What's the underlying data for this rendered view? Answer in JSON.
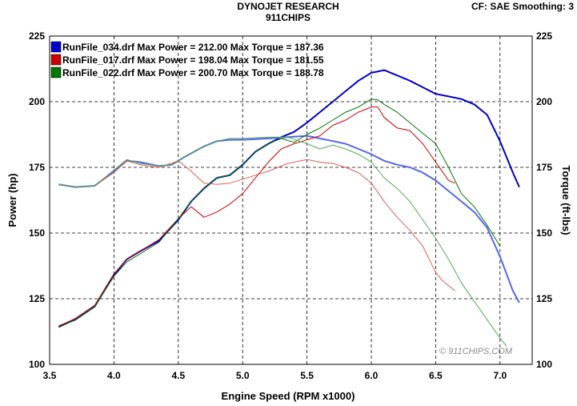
{
  "header": {
    "title": "DYNOJET RESEARCH",
    "subtitle": "911CHIPS",
    "settings": "CF: SAE  Smoothing: 3"
  },
  "watermark": "© 911CHIPS.COM",
  "chart_data": {
    "type": "line",
    "xlabel": "Engine Speed (RPM x1000)",
    "ylabel": "Power (hp)",
    "ylabel_right": "Torque (ft-lbs)",
    "xlim": [
      3.5,
      7.25
    ],
    "ylim": [
      100,
      225
    ],
    "ylim_right": [
      100,
      225
    ],
    "x_ticks": [
      "3.5",
      "4.0",
      "4.5",
      "5.0",
      "5.5",
      "6.0",
      "6.5",
      "7.0"
    ],
    "y_ticks": [
      "100",
      "125",
      "150",
      "175",
      "200",
      "225"
    ],
    "grid": true,
    "legend_position": "top-left",
    "legend": [
      {
        "file": "RunFile_034.drf",
        "text": "RunFile_034.drf Max Power = 212.00 Max Torque = 187.36",
        "color": "#0000cc"
      },
      {
        "file": "RunFile_017.drf",
        "text": "RunFile_017.drf Max Power = 198.04 Max Torque = 181.55",
        "color": "#cc0000"
      },
      {
        "file": "RunFile_022.drf",
        "text": "RunFile_022.drf Max Power = 200.70 Max Torque = 188.78",
        "color": "#007700"
      }
    ],
    "series": [
      {
        "name": "RunFile_034.drf",
        "measure": "Power",
        "color": "#0000cc",
        "width": 2,
        "points": [
          [
            3.57,
            114.5
          ],
          [
            3.7,
            117
          ],
          [
            3.85,
            122
          ],
          [
            4.0,
            134
          ],
          [
            4.1,
            140
          ],
          [
            4.2,
            143
          ],
          [
            4.35,
            147
          ],
          [
            4.5,
            155
          ],
          [
            4.6,
            162
          ],
          [
            4.7,
            167
          ],
          [
            4.8,
            171
          ],
          [
            4.9,
            172
          ],
          [
            5.0,
            176
          ],
          [
            5.1,
            181
          ],
          [
            5.2,
            184
          ],
          [
            5.3,
            186.5
          ],
          [
            5.4,
            188.5
          ],
          [
            5.5,
            192
          ],
          [
            5.6,
            196
          ],
          [
            5.7,
            200
          ],
          [
            5.8,
            204
          ],
          [
            5.9,
            208
          ],
          [
            6.0,
            211
          ],
          [
            6.1,
            212
          ],
          [
            6.2,
            210
          ],
          [
            6.3,
            208
          ],
          [
            6.4,
            205.5
          ],
          [
            6.5,
            203
          ],
          [
            6.6,
            202
          ],
          [
            6.7,
            201
          ],
          [
            6.8,
            199
          ],
          [
            6.9,
            195
          ],
          [
            7.0,
            185
          ],
          [
            7.1,
            173
          ],
          [
            7.15,
            167.5
          ]
        ]
      },
      {
        "name": "RunFile_034.drf",
        "measure": "Torque",
        "color": "#5566ee",
        "width": 2,
        "points": [
          [
            3.57,
            168.5
          ],
          [
            3.7,
            167.5
          ],
          [
            3.85,
            168
          ],
          [
            4.0,
            173.5
          ],
          [
            4.1,
            177.5
          ],
          [
            4.2,
            177
          ],
          [
            4.35,
            175.5
          ],
          [
            4.45,
            176
          ],
          [
            4.55,
            179
          ],
          [
            4.7,
            183
          ],
          [
            4.8,
            185
          ],
          [
            4.9,
            185.5
          ],
          [
            5.0,
            185.5
          ],
          [
            5.2,
            186
          ],
          [
            5.35,
            186.5
          ],
          [
            5.5,
            187
          ],
          [
            5.6,
            186
          ],
          [
            5.7,
            185
          ],
          [
            5.8,
            184
          ],
          [
            5.9,
            182
          ],
          [
            6.0,
            180
          ],
          [
            6.1,
            177.5
          ],
          [
            6.2,
            176
          ],
          [
            6.3,
            175
          ],
          [
            6.4,
            173
          ],
          [
            6.5,
            170
          ],
          [
            6.6,
            166
          ],
          [
            6.7,
            162
          ],
          [
            6.8,
            158
          ],
          [
            6.9,
            152
          ],
          [
            7.0,
            141
          ],
          [
            7.1,
            128
          ],
          [
            7.15,
            123.5
          ]
        ]
      },
      {
        "name": "RunFile_017.drf",
        "measure": "Power",
        "color": "#cc0000",
        "width": 1,
        "points": [
          [
            3.57,
            114.5
          ],
          [
            3.7,
            117.5
          ],
          [
            3.85,
            122.5
          ],
          [
            4.0,
            134.5
          ],
          [
            4.1,
            140
          ],
          [
            4.2,
            143
          ],
          [
            4.35,
            147.5
          ],
          [
            4.5,
            155.5
          ],
          [
            4.6,
            160
          ],
          [
            4.7,
            156
          ],
          [
            4.8,
            158
          ],
          [
            4.9,
            161
          ],
          [
            5.0,
            165
          ],
          [
            5.1,
            171
          ],
          [
            5.2,
            177
          ],
          [
            5.3,
            182
          ],
          [
            5.4,
            184
          ],
          [
            5.5,
            185.5
          ],
          [
            5.6,
            187
          ],
          [
            5.7,
            191
          ],
          [
            5.8,
            193
          ],
          [
            5.9,
            196
          ],
          [
            6.0,
            198
          ],
          [
            6.05,
            198
          ],
          [
            6.1,
            194
          ],
          [
            6.2,
            190
          ],
          [
            6.3,
            189
          ],
          [
            6.4,
            184
          ],
          [
            6.5,
            177
          ],
          [
            6.6,
            170
          ],
          [
            6.65,
            169
          ]
        ]
      },
      {
        "name": "RunFile_017.drf",
        "measure": "Torque",
        "color": "#e06050",
        "width": 1,
        "points": [
          [
            3.57,
            168.5
          ],
          [
            3.7,
            167.5
          ],
          [
            3.85,
            168
          ],
          [
            4.0,
            173
          ],
          [
            4.1,
            177.5
          ],
          [
            4.2,
            176
          ],
          [
            4.35,
            175
          ],
          [
            4.5,
            177.5
          ],
          [
            4.6,
            173.5
          ],
          [
            4.7,
            169
          ],
          [
            4.8,
            168.5
          ],
          [
            4.9,
            169
          ],
          [
            5.0,
            170.5
          ],
          [
            5.2,
            173.5
          ],
          [
            5.35,
            176.5
          ],
          [
            5.5,
            178
          ],
          [
            5.6,
            177
          ],
          [
            5.7,
            176.5
          ],
          [
            5.8,
            175
          ],
          [
            5.9,
            173
          ],
          [
            6.0,
            169
          ],
          [
            6.1,
            162
          ],
          [
            6.2,
            156
          ],
          [
            6.3,
            151
          ],
          [
            6.4,
            145
          ],
          [
            6.5,
            135
          ],
          [
            6.55,
            132
          ],
          [
            6.6,
            130
          ],
          [
            6.65,
            128
          ]
        ]
      },
      {
        "name": "RunFile_022.drf",
        "measure": "Power",
        "color": "#007700",
        "width": 1,
        "points": [
          [
            3.57,
            114
          ],
          [
            3.7,
            117
          ],
          [
            3.85,
            122
          ],
          [
            4.0,
            133.5
          ],
          [
            4.1,
            139
          ],
          [
            4.2,
            142
          ],
          [
            4.35,
            146.5
          ],
          [
            4.5,
            155.5
          ],
          [
            4.6,
            162
          ],
          [
            4.7,
            167
          ],
          [
            4.8,
            171
          ],
          [
            4.9,
            172
          ],
          [
            5.0,
            176
          ],
          [
            5.1,
            181
          ],
          [
            5.2,
            184
          ],
          [
            5.3,
            186
          ],
          [
            5.4,
            184.5
          ],
          [
            5.5,
            187.5
          ],
          [
            5.6,
            190
          ],
          [
            5.7,
            193
          ],
          [
            5.8,
            196
          ],
          [
            5.9,
            198
          ],
          [
            6.0,
            201
          ],
          [
            6.05,
            200.7
          ],
          [
            6.1,
            199
          ],
          [
            6.2,
            196
          ],
          [
            6.3,
            192
          ],
          [
            6.4,
            188
          ],
          [
            6.5,
            184
          ],
          [
            6.6,
            175
          ],
          [
            6.7,
            165
          ],
          [
            6.8,
            160
          ],
          [
            6.9,
            153
          ],
          [
            7.0,
            145
          ]
        ]
      },
      {
        "name": "RunFile_022.drf",
        "measure": "Torque",
        "color": "#55aa55",
        "width": 1,
        "points": [
          [
            3.57,
            168.5
          ],
          [
            3.7,
            167.5
          ],
          [
            3.85,
            168
          ],
          [
            4.0,
            174
          ],
          [
            4.1,
            178
          ],
          [
            4.2,
            176.5
          ],
          [
            4.35,
            175.5
          ],
          [
            4.45,
            176
          ],
          [
            4.55,
            179
          ],
          [
            4.7,
            183
          ],
          [
            4.8,
            185
          ],
          [
            4.9,
            186
          ],
          [
            5.0,
            186
          ],
          [
            5.2,
            186.5
          ],
          [
            5.35,
            186.5
          ],
          [
            5.5,
            184
          ],
          [
            5.6,
            182
          ],
          [
            5.7,
            183.5
          ],
          [
            5.8,
            182
          ],
          [
            5.9,
            180
          ],
          [
            6.0,
            177
          ],
          [
            6.1,
            171
          ],
          [
            6.2,
            167
          ],
          [
            6.3,
            162
          ],
          [
            6.4,
            155
          ],
          [
            6.5,
            148
          ],
          [
            6.6,
            140
          ],
          [
            6.7,
            131
          ],
          [
            6.8,
            124
          ],
          [
            6.9,
            117
          ],
          [
            7.0,
            110
          ],
          [
            7.05,
            107
          ]
        ]
      }
    ]
  }
}
